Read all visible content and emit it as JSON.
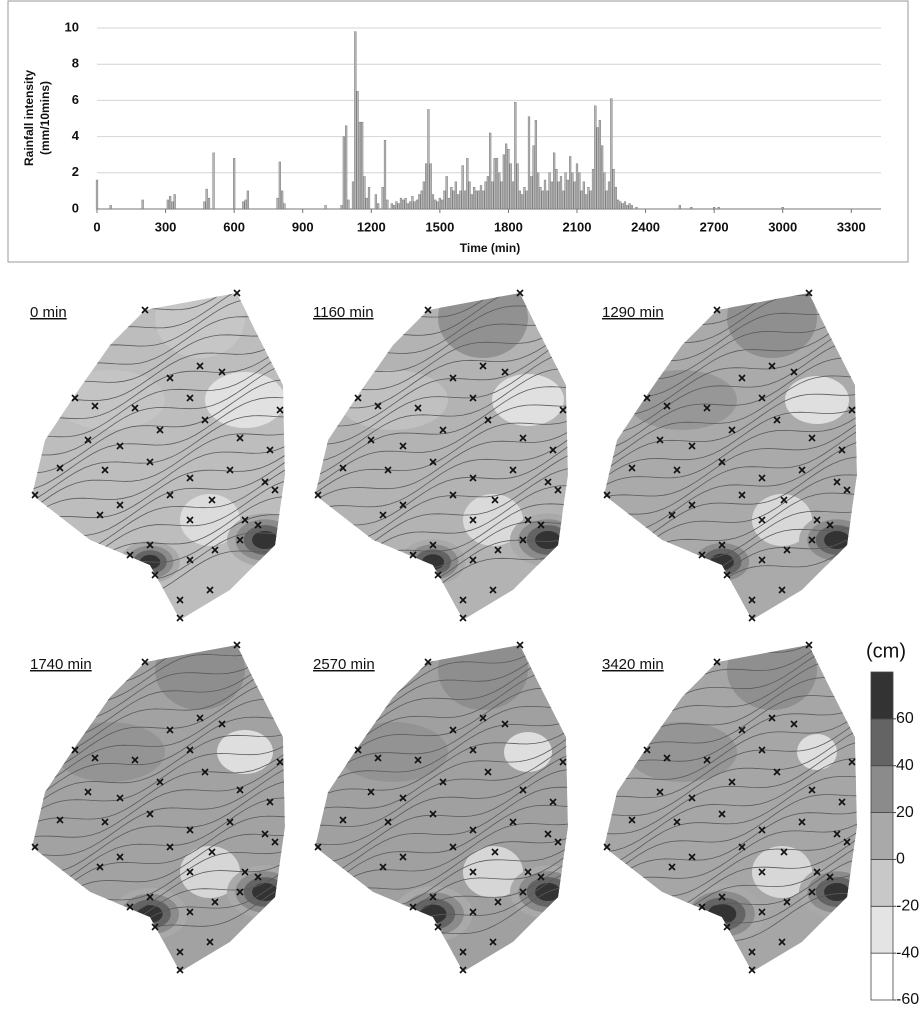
{
  "chart_data": [
    {
      "type": "bar",
      "xlabel": "Time (min)",
      "ylabel": [
        "Rainfall intensity",
        "(mm/10mins)"
      ],
      "color": "#b8b8b8",
      "grid": true,
      "xlim": [
        0,
        3430
      ],
      "ylim": [
        0,
        10
      ],
      "xticks": [
        0,
        300,
        600,
        900,
        1200,
        1500,
        1800,
        2100,
        2400,
        2700,
        3000,
        3300
      ],
      "yticks": [
        0,
        2,
        4,
        6,
        8,
        10
      ],
      "x": [
        0,
        60,
        200,
        310,
        320,
        330,
        340,
        470,
        480,
        490,
        510,
        600,
        640,
        650,
        660,
        790,
        800,
        810,
        820,
        1000,
        1070,
        1080,
        1090,
        1100,
        1120,
        1130,
        1140,
        1150,
        1160,
        1170,
        1180,
        1190,
        1220,
        1230,
        1250,
        1260,
        1270,
        1290,
        1300,
        1310,
        1320,
        1330,
        1340,
        1350,
        1360,
        1370,
        1380,
        1390,
        1400,
        1410,
        1420,
        1430,
        1440,
        1450,
        1460,
        1470,
        1480,
        1490,
        1500,
        1510,
        1520,
        1530,
        1540,
        1550,
        1560,
        1570,
        1580,
        1590,
        1600,
        1610,
        1620,
        1630,
        1640,
        1650,
        1660,
        1670,
        1680,
        1690,
        1700,
        1710,
        1720,
        1730,
        1740,
        1750,
        1760,
        1770,
        1780,
        1790,
        1800,
        1810,
        1820,
        1830,
        1840,
        1850,
        1860,
        1870,
        1880,
        1890,
        1900,
        1910,
        1920,
        1930,
        1940,
        1950,
        1960,
        1970,
        1980,
        1990,
        2000,
        2010,
        2020,
        2030,
        2040,
        2050,
        2060,
        2070,
        2080,
        2090,
        2100,
        2110,
        2120,
        2130,
        2140,
        2150,
        2160,
        2170,
        2180,
        2190,
        2200,
        2210,
        2220,
        2230,
        2240,
        2250,
        2260,
        2270,
        2280,
        2290,
        2300,
        2310,
        2320,
        2330,
        2340,
        2360,
        2550,
        2600,
        2700,
        2720,
        3000
      ],
      "values": [
        1.6,
        0.2,
        0.5,
        0.5,
        0.7,
        0.4,
        0.8,
        0.4,
        1.1,
        0.6,
        3.1,
        2.8,
        0.4,
        0.5,
        1.0,
        0.6,
        2.6,
        1.0,
        0.3,
        0.2,
        0.2,
        4.0,
        4.6,
        0.5,
        1.5,
        9.8,
        6.5,
        4.8,
        4.8,
        1.8,
        0.6,
        1.2,
        0.8,
        0.3,
        1.2,
        3.8,
        0.5,
        0.3,
        0.2,
        0.4,
        0.3,
        0.6,
        0.5,
        0.6,
        0.3,
        0.4,
        0.7,
        0.4,
        0.5,
        0.8,
        1.0,
        1.5,
        2.5,
        5.5,
        2.5,
        0.8,
        0.5,
        0.4,
        0.6,
        0.5,
        1.0,
        1.8,
        0.6,
        1.2,
        1.0,
        1.5,
        0.8,
        1.0,
        2.4,
        1.0,
        2.8,
        1.5,
        0.8,
        1.2,
        1.0,
        1.0,
        1.3,
        1.0,
        1.5,
        1.8,
        4.2,
        1.5,
        2.8,
        2.8,
        2.0,
        1.5,
        3.0,
        3.6,
        3.3,
        2.5,
        1.5,
        5.9,
        2.5,
        1.0,
        0.8,
        1.2,
        1.0,
        5.1,
        1.8,
        3.5,
        4.9,
        2.0,
        1.2,
        1.0,
        1.6,
        1.0,
        2.0,
        1.5,
        3.1,
        2.2,
        1.5,
        1.8,
        1.0,
        2.0,
        1.6,
        2.9,
        2.0,
        1.5,
        2.5,
        2.0,
        1.0,
        1.5,
        0.8,
        1.2,
        1.0,
        2.2,
        5.7,
        4.5,
        4.9,
        3.5,
        2.0,
        1.0,
        1.5,
        6.1,
        2.2,
        1.2,
        0.5,
        0.4,
        0.3,
        0.4,
        0.2,
        0.3,
        0.2,
        0.1,
        0.2,
        0.1,
        0.1,
        0.1,
        0.1
      ]
    },
    {
      "type": "contour-map",
      "panels": [
        "0 min",
        "1160 min",
        "1290 min",
        "1740 min",
        "2570 min",
        "3420 min"
      ],
      "colorbar": {
        "title": "(cm)",
        "lim": [
          -60,
          80
        ],
        "ticks": [
          -60,
          -40,
          -20,
          0,
          20,
          40,
          60
        ],
        "colors": [
          "#ffffff",
          "#e4e4e4",
          "#c8c8c8",
          "#a9a9a9",
          "#8b8b8b",
          "#646464",
          "#333333"
        ]
      }
    }
  ]
}
